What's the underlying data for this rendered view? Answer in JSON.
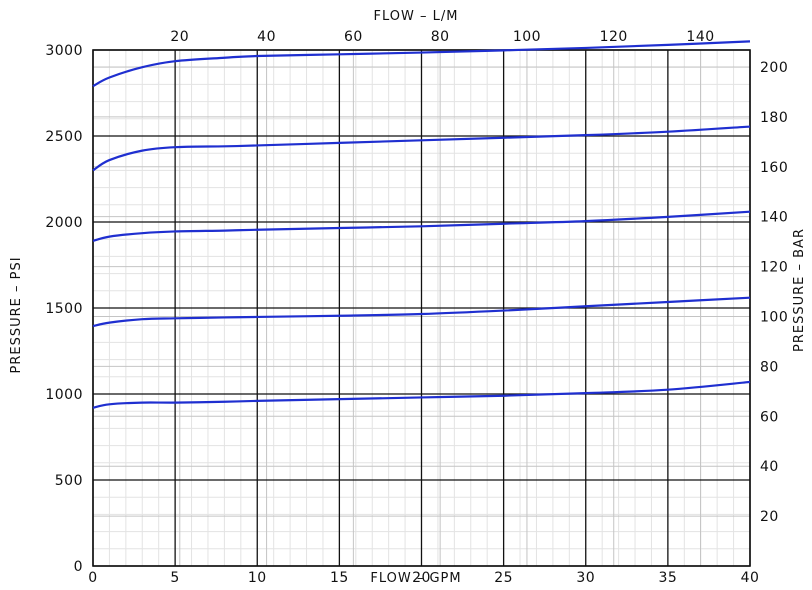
{
  "chart_data": {
    "type": "line",
    "title": "",
    "xlabel": "FLOW – GPM",
    "x2label": "FLOW – L/M",
    "ylabel": "PRESSURE – PSI",
    "y2label": "PRESSURE – BAR",
    "xlim": [
      0,
      40
    ],
    "ylim": [
      0,
      3000
    ],
    "x2lim": [
      0,
      151.4
    ],
    "y2lim": [
      0,
      206.8
    ],
    "x_ticks": [
      "0",
      "5",
      "10",
      "15",
      "20",
      "25",
      "30",
      "35",
      "40"
    ],
    "y_ticks": [
      "0",
      "500",
      "1000",
      "1500",
      "2000",
      "2500",
      "3000"
    ],
    "x2_ticks": [
      "20",
      "40",
      "60",
      "80",
      "100",
      "120",
      "140"
    ],
    "y2_ticks": [
      "20",
      "40",
      "60",
      "80",
      "100",
      "120",
      "140",
      "160",
      "180",
      "200"
    ],
    "grid": true,
    "line_color": "#1f2fd0",
    "series": [
      {
        "x": [
          0,
          1,
          3,
          5,
          8,
          10,
          15,
          20,
          25,
          30,
          35,
          40
        ],
        "values": [
          2790,
          2840,
          2900,
          2935,
          2955,
          2965,
          2975,
          2985,
          2998,
          3012,
          3030,
          3050
        ]
      },
      {
        "x": [
          0,
          1,
          3,
          5,
          8,
          10,
          15,
          20,
          25,
          30,
          35,
          40
        ],
        "values": [
          2300,
          2360,
          2415,
          2435,
          2440,
          2445,
          2460,
          2475,
          2490,
          2505,
          2525,
          2555
        ]
      },
      {
        "x": [
          0,
          1,
          3,
          5,
          8,
          10,
          15,
          20,
          25,
          30,
          35,
          40
        ],
        "values": [
          1890,
          1915,
          1935,
          1945,
          1950,
          1955,
          1965,
          1975,
          1990,
          2005,
          2030,
          2060
        ]
      },
      {
        "x": [
          0,
          1,
          3,
          5,
          8,
          10,
          15,
          20,
          25,
          30,
          35,
          40
        ],
        "values": [
          1395,
          1415,
          1435,
          1440,
          1445,
          1448,
          1455,
          1465,
          1485,
          1510,
          1535,
          1560
        ]
      },
      {
        "x": [
          0,
          1,
          3,
          5,
          8,
          10,
          15,
          20,
          25,
          30,
          35,
          40
        ],
        "values": [
          920,
          940,
          950,
          950,
          955,
          960,
          970,
          980,
          990,
          1005,
          1025,
          1070
        ]
      }
    ]
  }
}
